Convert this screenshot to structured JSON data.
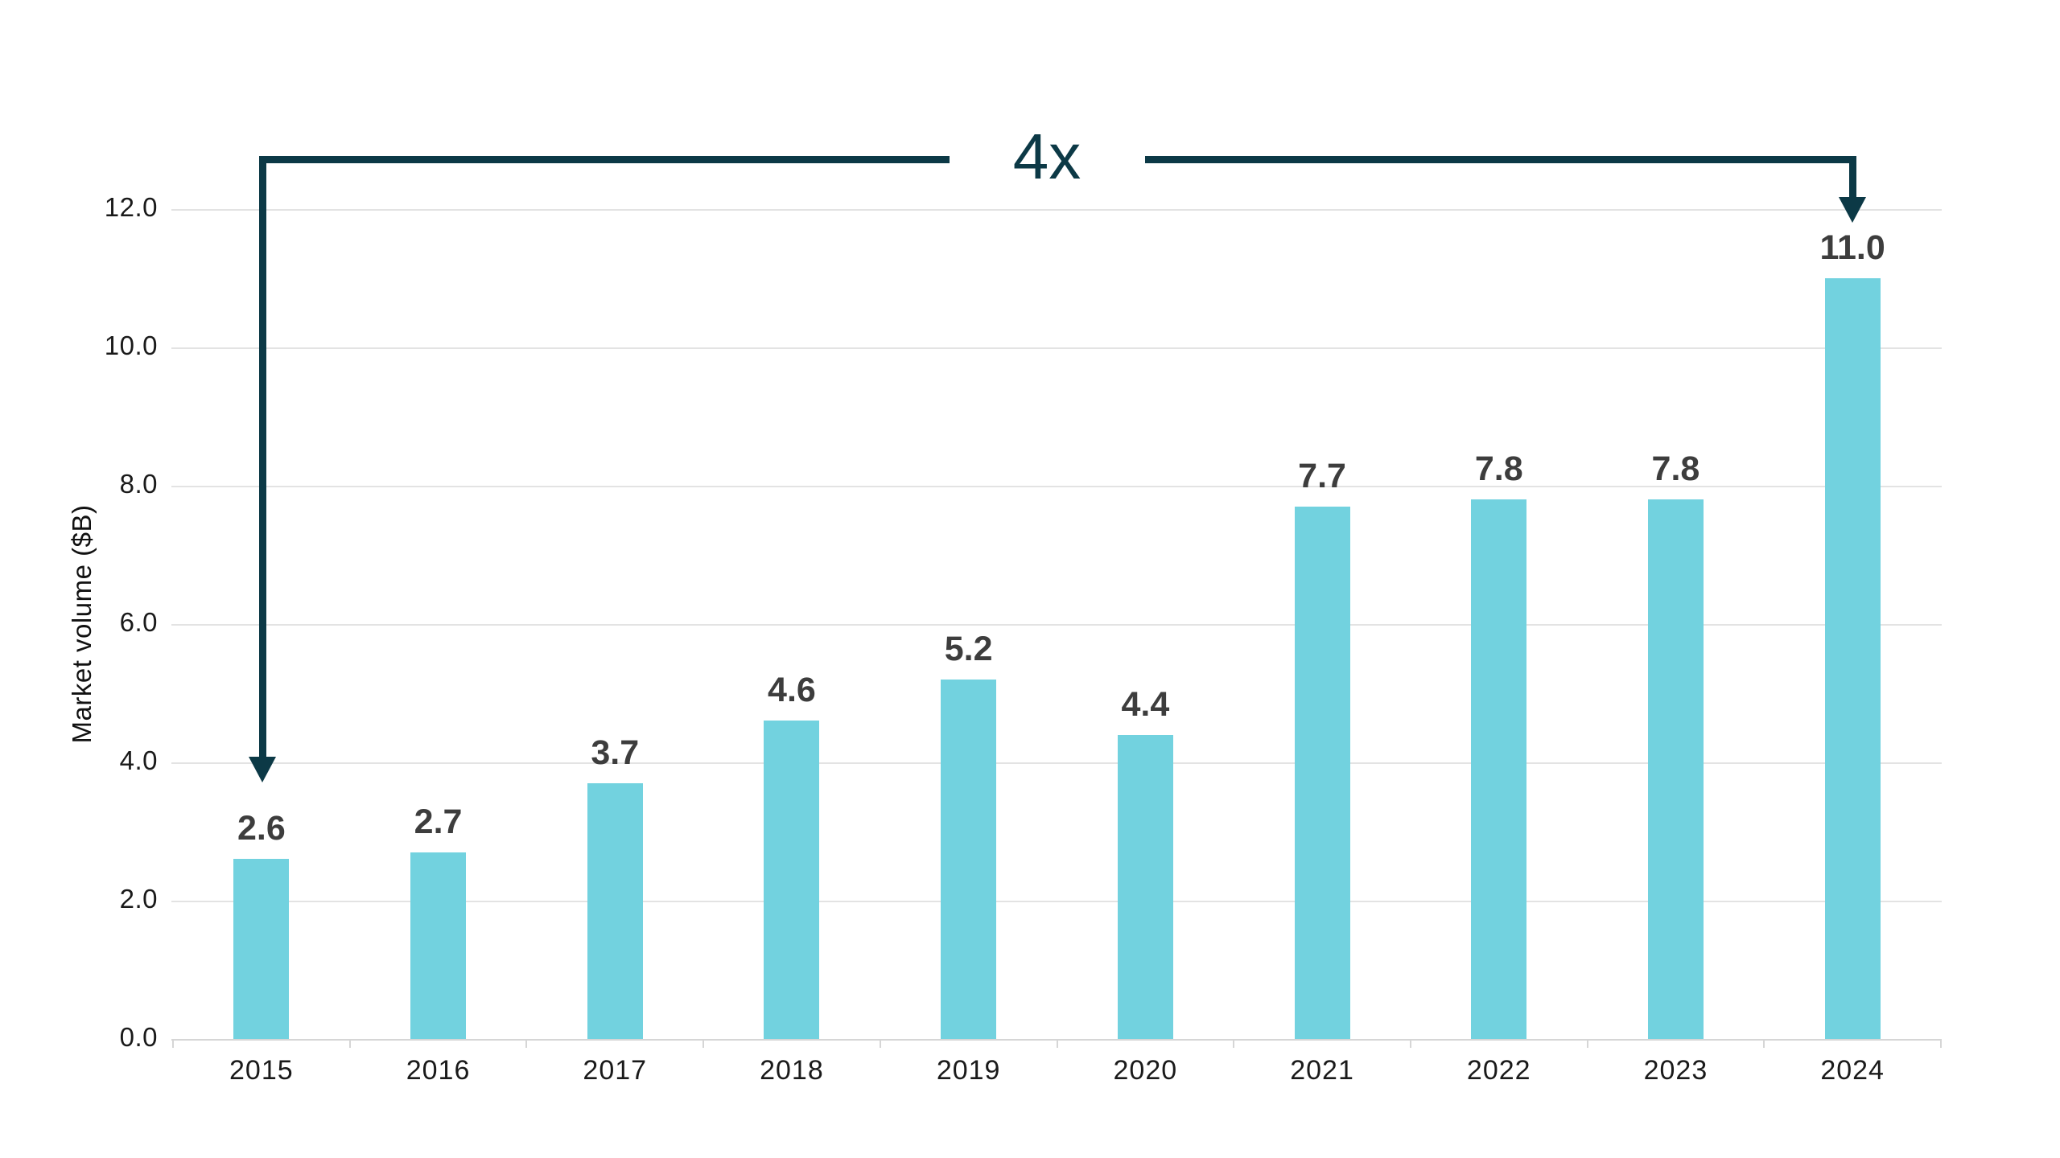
{
  "chart_data": {
    "type": "bar",
    "title": "",
    "ylabel": "Market volume ($B)",
    "xlabel": "",
    "categories": [
      "2015",
      "2016",
      "2017",
      "2018",
      "2019",
      "2020",
      "2021",
      "2022",
      "2023",
      "2024"
    ],
    "values": [
      2.6,
      2.7,
      3.7,
      4.6,
      5.2,
      4.4,
      7.7,
      7.8,
      7.8,
      11.0
    ],
    "value_labels": [
      "2.6",
      "2.7",
      "3.7",
      "4.6",
      "5.2",
      "4.4",
      "7.7",
      "7.8",
      "7.8",
      "11.0"
    ],
    "y_ticks": [
      0.0,
      2.0,
      4.0,
      6.0,
      8.0,
      10.0,
      12.0
    ],
    "y_tick_labels": [
      "0.0",
      "2.0",
      "4.0",
      "6.0",
      "8.0",
      "10.0",
      "12.0"
    ],
    "ylim": [
      0,
      12
    ],
    "grid": "horizontal",
    "legend": "none",
    "annotation": {
      "text": "4x",
      "from_category": "2015",
      "to_category": "2024"
    },
    "colors": {
      "bar": "#72d2df",
      "annotation": "#0c3946",
      "value_label": "#3d3d3d",
      "axis_text": "#1a1a1a",
      "gridline": "#e3e3e3",
      "axis_line": "#d6d6d6",
      "background": "#ffffff"
    }
  }
}
